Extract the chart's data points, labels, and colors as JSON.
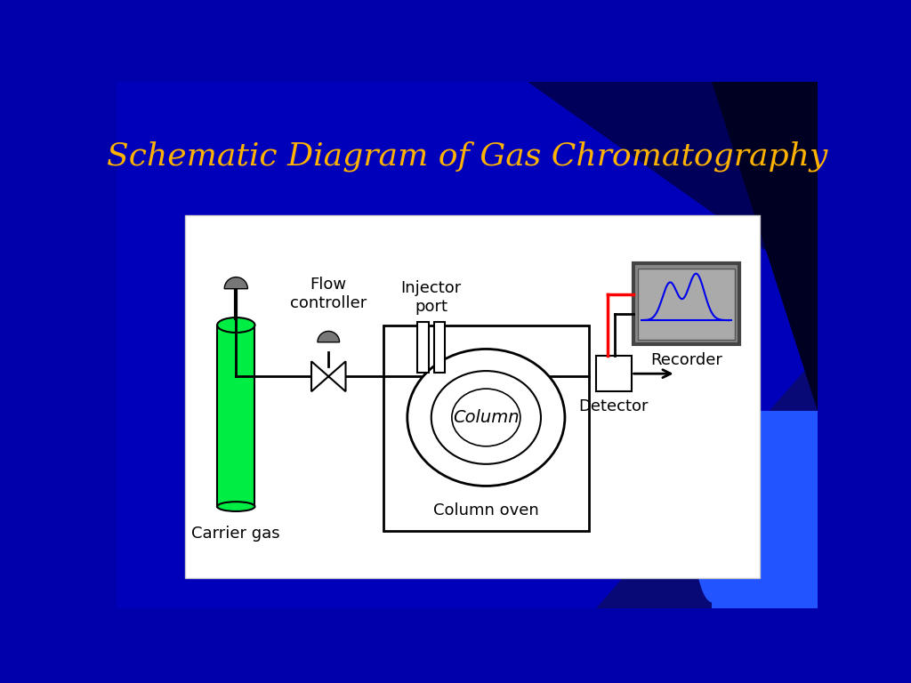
{
  "title": "Schematic Diagram of Gas Chromatography",
  "title_color": "#FFB300",
  "title_fontsize": 26,
  "bg_color_top": "#0000CC",
  "bg_color": "#0000AA",
  "panel_bg": "#FFFFFF",
  "carrier_gas_label": "Carrier gas",
  "flow_controller_label": "Flow\ncontroller",
  "injector_port_label": "Injector\nport",
  "column_label": "Column",
  "column_oven_label": "Column oven",
  "detector_label": "Detector",
  "recorder_label": "Recorder",
  "green_color": "#00EE44",
  "gray_color": "#777777",
  "recorder_bg": "#999999",
  "red_line": "#FF0000",
  "blue_line": "#0000EE",
  "arc_color": "#4466FF"
}
